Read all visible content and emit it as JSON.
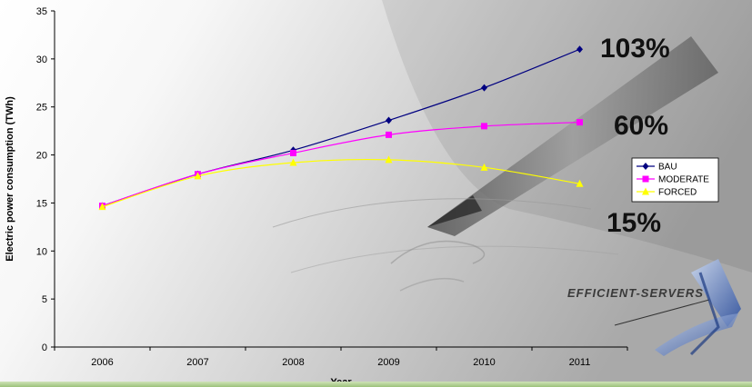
{
  "chart_data": {
    "type": "line",
    "xlabel": "Year",
    "ylabel": "Electric power consumption (TWh)",
    "categories": [
      "2006",
      "2007",
      "2008",
      "2009",
      "2010",
      "2011"
    ],
    "ylim": [
      0,
      35
    ],
    "yticks": [
      0,
      5,
      10,
      15,
      20,
      25,
      30,
      35
    ],
    "grid": false,
    "legend_position": "right",
    "series": [
      {
        "name": "BAU",
        "color": "#000080",
        "marker": "diamond",
        "values": [
          14.7,
          18.0,
          20.5,
          23.6,
          27.0,
          31.0
        ]
      },
      {
        "name": "MODERATE",
        "color": "#ff00ff",
        "marker": "square",
        "values": [
          14.7,
          18.0,
          20.2,
          22.1,
          23.0,
          23.4
        ]
      },
      {
        "name": "FORCED",
        "color": "#ffff00",
        "marker": "triangle",
        "values": [
          14.6,
          17.8,
          19.2,
          19.5,
          18.7,
          17.0
        ]
      }
    ],
    "annotations": [
      "103%",
      "60%",
      "15%"
    ]
  },
  "logo": {
    "text": "EFFICIENT-SERVERS"
  }
}
